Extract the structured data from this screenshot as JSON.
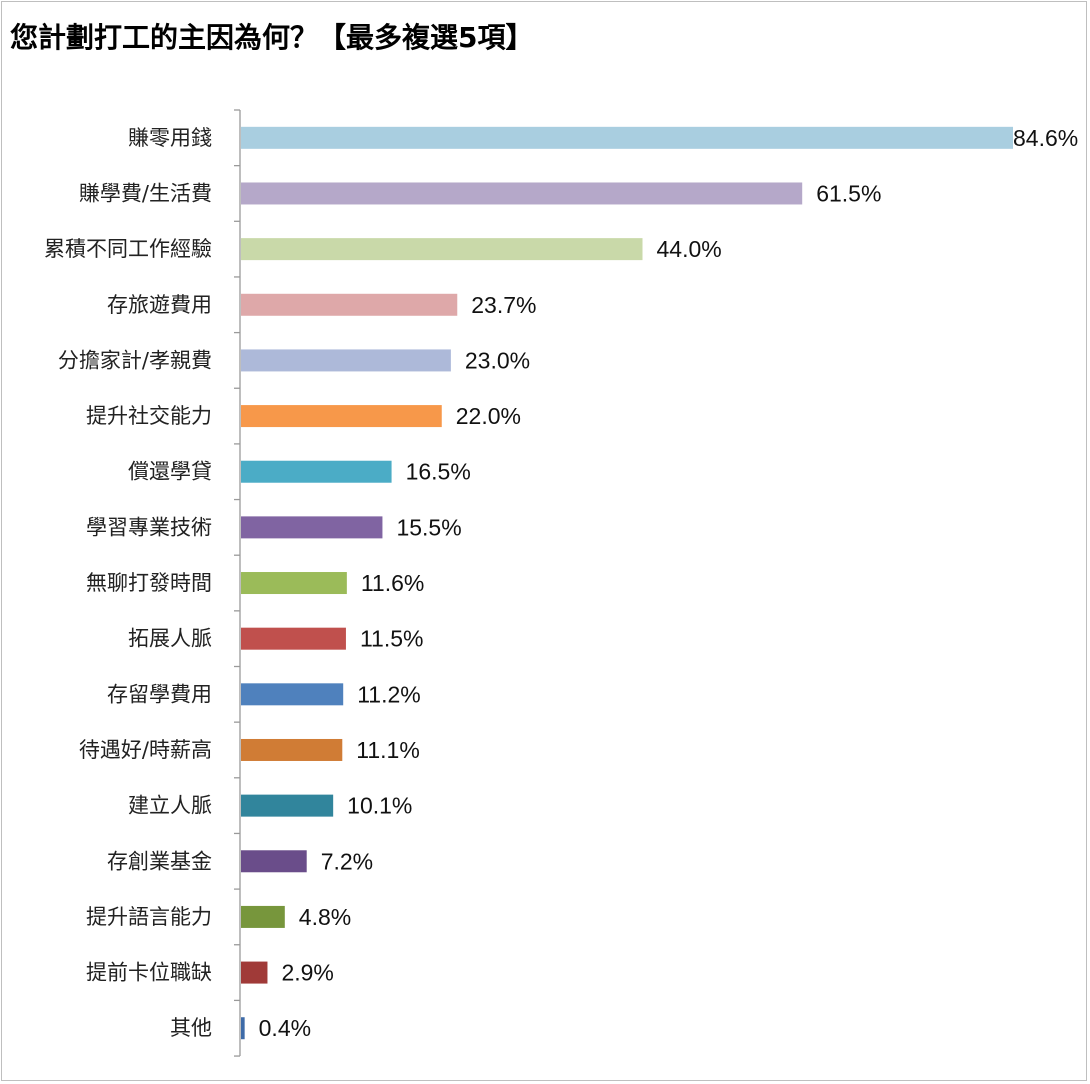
{
  "chart_data": {
    "type": "bar",
    "orientation": "horizontal",
    "title": "您計劃打工的主因為何？【最多複選5項】",
    "categories": [
      "賺零用錢",
      "賺學費/生活費",
      "累積不同工作經驗",
      "存旅遊費用",
      "分擔家計/孝親費",
      "提升社交能力",
      "償還學貸",
      "學習專業技術",
      "無聊打發時間",
      "拓展人脈",
      "存留學費用",
      "待遇好/時薪高",
      "建立人脈",
      "存創業基金",
      "提升語言能力",
      "提前卡位職缺",
      "其他"
    ],
    "values": [
      84.6,
      61.5,
      44.0,
      23.7,
      23.0,
      22.0,
      16.5,
      15.5,
      11.6,
      11.5,
      11.2,
      11.1,
      10.1,
      7.2,
      4.8,
      2.9,
      0.4
    ],
    "value_labels": [
      "84.6%",
      "61.5%",
      "44.0%",
      "23.7%",
      "23.0%",
      "22.0%",
      "16.5%",
      "15.5%",
      "11.6%",
      "11.5%",
      "11.2%",
      "11.1%",
      "10.1%",
      "7.2%",
      "4.8%",
      "2.9%",
      "0.4%"
    ],
    "colors": [
      "#a9cee0",
      "#b5a8c9",
      "#c9d9a9",
      "#dea8a9",
      "#adb9d9",
      "#f7984a",
      "#4bacc6",
      "#8064a2",
      "#9bbb59",
      "#c0504d",
      "#4f81bd",
      "#d07c35",
      "#31859c",
      "#6a4d8a",
      "#77963c",
      "#a03a38",
      "#3e6ba8"
    ],
    "xlim": [
      0,
      90
    ],
    "grid": false,
    "legend": "none"
  }
}
